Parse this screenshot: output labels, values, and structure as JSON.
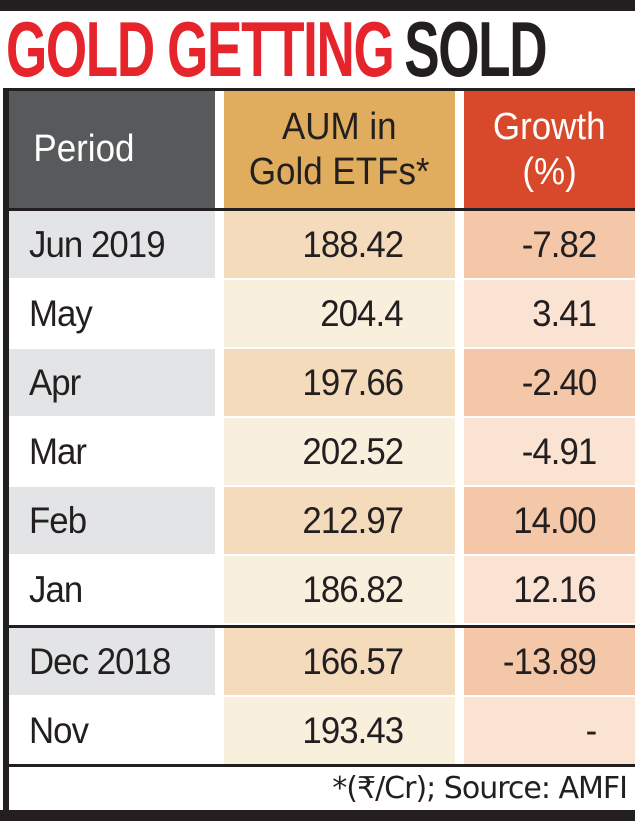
{
  "title": {
    "red_part": "GOLD GETTING",
    "dark_part": "SOLD"
  },
  "table": {
    "header": {
      "period": "Period",
      "aum_line1": "AUM in",
      "aum_line2": "Gold ETFs*",
      "growth_line1": "Growth",
      "growth_line2": "(%)"
    },
    "rows": [
      {
        "period": "Jun 2019",
        "aum": "188.42",
        "growth": "-7.82"
      },
      {
        "period": "May",
        "aum": "204.4",
        "growth": "3.41"
      },
      {
        "period": "Apr",
        "aum": "197.66",
        "growth": "-2.40"
      },
      {
        "period": "Mar",
        "aum": "202.52",
        "growth": "-4.91"
      },
      {
        "period": "Feb",
        "aum": "212.97",
        "growth": "14.00"
      },
      {
        "period": "Jan",
        "aum": "186.82",
        "growth": "12.16"
      },
      {
        "period": "Dec 2018",
        "aum": "166.57",
        "growth": "-13.89",
        "new_section": true
      },
      {
        "period": "Nov",
        "aum": "193.43",
        "growth": "-"
      }
    ],
    "footnote": "*(₹/Cr); Source: AMFI"
  },
  "chart_data": {
    "type": "table",
    "title": "GOLD GETTING SOLD",
    "columns": [
      "Period",
      "AUM in Gold ETFs*",
      "Growth (%)"
    ],
    "rows": [
      [
        "Jun 2019",
        188.42,
        -7.82
      ],
      [
        "May",
        204.4,
        3.41
      ],
      [
        "Apr",
        197.66,
        -2.4
      ],
      [
        "Mar",
        202.52,
        -4.91
      ],
      [
        "Feb",
        212.97,
        14.0
      ],
      [
        "Jan",
        186.82,
        12.16
      ],
      [
        "Dec 2018",
        166.57,
        -13.89
      ],
      [
        "Nov",
        193.43,
        null
      ]
    ],
    "units": "₹/Cr",
    "source": "AMFI"
  },
  "colors": {
    "frame_black": "#231f20",
    "title_red": "#e6242b",
    "header_gray": "#58595b",
    "header_gold": "#dfad5d",
    "header_orange": "#d8492b",
    "row_gray": "#e3e4e6",
    "aum_dark": "#f3dbbc",
    "aum_light": "#f9efdd",
    "growth_dark": "#f4c7a8",
    "growth_light": "#fbe3d3"
  }
}
